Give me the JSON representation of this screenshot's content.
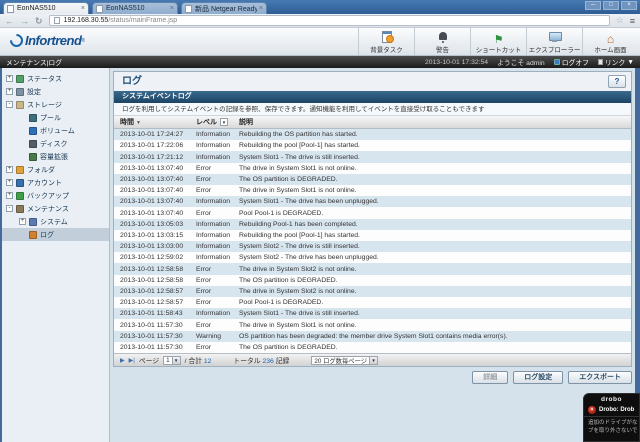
{
  "browser": {
    "tabs": [
      {
        "title": "EonNAS510",
        "active": true
      },
      {
        "title": "EonNAS510"
      },
      {
        "title": "新品 Netgear ReadyNAS"
      }
    ],
    "tab_close_icon": "×",
    "back_icon": "←",
    "forward_icon": "→",
    "reload_icon": "↻",
    "url_host": "192.168.30.55",
    "url_path": "/status/mainFrame.jsp",
    "bookmark_icon": "☆",
    "menu_icon": "≡",
    "window_controls": {
      "minimize": "─",
      "maximize": "□",
      "close": "×"
    }
  },
  "header": {
    "logo_text": "Infortrend",
    "reg_mark": "®",
    "buttons": [
      {
        "label": "背景タスク",
        "icon": "background-tasks-icon"
      },
      {
        "label": "警告",
        "icon": "alerts-icon"
      },
      {
        "label": "ショートカット",
        "icon": "shortcut-icon"
      },
      {
        "label": "エクスプローラー",
        "icon": "explorer-icon"
      },
      {
        "label": "ホーム画面",
        "icon": "home-icon"
      }
    ]
  },
  "statusbar": {
    "breadcrumb": "メンテナンス|ログ",
    "datetime": "2013-10-01 17:32:54",
    "welcome": "ようこそ admin",
    "logoff_label": "ログオフ",
    "links_label": "リンク",
    "links_arrow": "▼"
  },
  "sidebar": {
    "items": [
      {
        "label": "ステータス",
        "depth": 0,
        "expander": "+",
        "icon": "status-icon"
      },
      {
        "label": "設定",
        "depth": 0,
        "expander": "+",
        "icon": "settings-icon"
      },
      {
        "label": "ストレージ",
        "depth": 0,
        "expander": "-",
        "icon": "storage-icon"
      },
      {
        "label": "プール",
        "depth": 1,
        "expander": "",
        "icon": "pool-icon"
      },
      {
        "label": "ボリューム",
        "depth": 1,
        "expander": "",
        "icon": "volume-icon"
      },
      {
        "label": "ディスク",
        "depth": 1,
        "expander": "",
        "icon": "disk-icon"
      },
      {
        "label": "容量拡張",
        "depth": 1,
        "expander": "",
        "icon": "capacity-icon"
      },
      {
        "label": "フォルダ",
        "depth": 0,
        "expander": "+",
        "icon": "folder-icon"
      },
      {
        "label": "アカウント",
        "depth": 0,
        "expander": "+",
        "icon": "account-icon"
      },
      {
        "label": "バックアップ",
        "depth": 0,
        "expander": "+",
        "icon": "backup-icon"
      },
      {
        "label": "メンテナンス",
        "depth": 0,
        "expander": "-",
        "icon": "maintenance-icon"
      },
      {
        "label": "システム",
        "depth": 1,
        "expander": "+",
        "icon": "system-icon"
      },
      {
        "label": "ログ",
        "depth": 1,
        "expander": "",
        "icon": "log-icon",
        "selected": true
      }
    ]
  },
  "main": {
    "title": "ログ",
    "help_label": "?",
    "tab_label": "システムイベントログ",
    "description": "ログを利用してシステムイベントの記録を参照、保存できます。通知機能を利用してイベントを直接受け取ることもできます",
    "table": {
      "columns": [
        "時間",
        "レベル",
        "説明"
      ],
      "sort_icon": "▼",
      "filter_icon": "▼",
      "rows": [
        {
          "time": "2013-10-01 17:24:27",
          "level": "Information",
          "desc": "Rebuilding the OS partition has started."
        },
        {
          "time": "2013-10-01 17:22:06",
          "level": "Information",
          "desc": "Rebuilding the pool [Pool-1] has started."
        },
        {
          "time": "2013-10-01 17:21:12",
          "level": "Information",
          "desc": "System Slot1 - The drive is still inserted."
        },
        {
          "time": "2013-10-01 13:07:40",
          "level": "Error",
          "desc": "The drive in System Slot1 is not online."
        },
        {
          "time": "2013-10-01 13:07:40",
          "level": "Error",
          "desc": "The OS partition is DEGRADED."
        },
        {
          "time": "2013-10-01 13:07:40",
          "level": "Error",
          "desc": "The drive in System Slot1 is not online."
        },
        {
          "time": "2013-10-01 13:07:40",
          "level": "Information",
          "desc": "System Slot1 - The drive has been unplugged."
        },
        {
          "time": "2013-10-01 13:07:40",
          "level": "Error",
          "desc": "Pool Pool-1 is DEGRADED."
        },
        {
          "time": "2013-10-01 13:05:03",
          "level": "Information",
          "desc": "Rebuilding Pool-1 has been completed."
        },
        {
          "time": "2013-10-01 13:03:15",
          "level": "Information",
          "desc": "Rebuilding the pool [Pool-1] has started."
        },
        {
          "time": "2013-10-01 13:03:00",
          "level": "Information",
          "desc": "System Slot2 - The drive is still inserted."
        },
        {
          "time": "2013-10-01 12:59:02",
          "level": "Information",
          "desc": "System Slot2 - The drive has been unplugged."
        },
        {
          "time": "2013-10-01 12:58:58",
          "level": "Error",
          "desc": "The drive in System Slot2 is not online."
        },
        {
          "time": "2013-10-01 12:58:58",
          "level": "Error",
          "desc": "The OS partition is DEGRADED."
        },
        {
          "time": "2013-10-01 12:58:57",
          "level": "Error",
          "desc": "The drive in System Slot2 is not online."
        },
        {
          "time": "2013-10-01 12:58:57",
          "level": "Error",
          "desc": "Pool Pool-1 is DEGRADED."
        },
        {
          "time": "2013-10-01 11:58:43",
          "level": "Information",
          "desc": "System Slot1 - The drive is still inserted."
        },
        {
          "time": "2013-10-01 11:57:30",
          "level": "Error",
          "desc": "The drive in System Slot1 is not online."
        },
        {
          "time": "2013-10-01 11:57:30",
          "level": "Warning",
          "desc": "OS partition has been degraded: the member drive System Slot1 contains media error(s)."
        },
        {
          "time": "2013-10-01 11:57:30",
          "level": "Error",
          "desc": "The OS partition is DEGRADED."
        }
      ]
    },
    "pagination": {
      "next_icon": "▶",
      "last_icon": "▶|",
      "page_label": "ページ",
      "page_value": "1",
      "of_label": "/ 合計",
      "page_count": "12",
      "total_label": "トータル",
      "total_value": "236",
      "records_label": "記録",
      "per_page_value": "20 ログ数毎ページ",
      "select_arrow": "▼"
    },
    "buttons": [
      {
        "label": "詳細",
        "disabled": true
      },
      {
        "label": "ログ設定"
      },
      {
        "label": "エクスポート"
      }
    ]
  },
  "drobo": {
    "logo": "drobo",
    "error_icon": "×",
    "title": "Drobo: Drob",
    "line1": "追加のドライブがな",
    "line2": "ブを取り外さないで"
  }
}
